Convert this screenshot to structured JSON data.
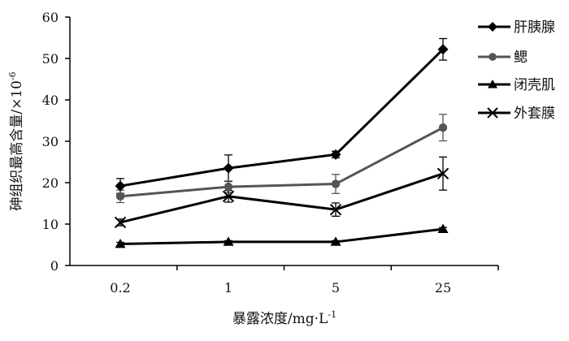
{
  "chart_data": {
    "type": "line",
    "categories": [
      "0.2",
      "1",
      "5",
      "25"
    ],
    "xlabel": "暴露浓度/mg·L",
    "xlabel_sup": "-1",
    "ylabel": "砷组织最高含量/×10",
    "ylabel_sup": "-6",
    "ylim": [
      0,
      60
    ],
    "yticks": [
      "0",
      "10",
      "20",
      "30",
      "40",
      "50",
      "60"
    ],
    "grid": false,
    "legend_position": "right",
    "series": [
      {
        "name": "肝胰腺",
        "marker": "diamond",
        "color": "#000000",
        "values": [
          19.2,
          23.5,
          26.8,
          52.2
        ],
        "errors": [
          1.8,
          3.2,
          0.8,
          2.6
        ]
      },
      {
        "name": "鳃",
        "marker": "circle",
        "color": "#555555",
        "values": [
          16.7,
          19.0,
          19.7,
          33.3
        ],
        "errors": [
          1.5,
          1.4,
          2.3,
          3.2
        ]
      },
      {
        "name": "闭壳肌",
        "marker": "triangle",
        "color": "#000000",
        "values": [
          5.2,
          5.7,
          5.7,
          8.8
        ],
        "errors": [
          0.4,
          0.3,
          0.3,
          0.4
        ]
      },
      {
        "name": "外套膜",
        "marker": "x",
        "color": "#000000",
        "values": [
          10.4,
          16.7,
          13.5,
          22.2
        ],
        "errors": [
          0.8,
          1.4,
          1.6,
          4.0
        ]
      }
    ]
  }
}
